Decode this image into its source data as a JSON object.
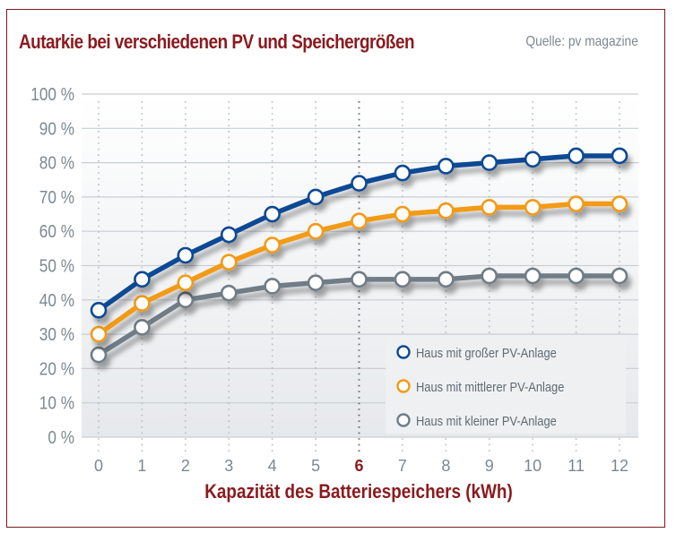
{
  "header": {
    "title": "Autarkie bei verschiedenen PV und Speichergrößen",
    "source": "Quelle: pv magazine"
  },
  "colors": {
    "accent": "#8b1a1e",
    "blue": "#0a4a94",
    "orange": "#f39a13",
    "gray": "#6f7c86",
    "axis_text": "#7c8891"
  },
  "chart_data": {
    "type": "line",
    "title": "Autarkie bei verschiedenen PV und Speichergrößen",
    "xlabel": "Kapazität des Batteriespeichers (kWh)",
    "ylabel": "",
    "x": [
      0,
      1,
      2,
      3,
      4,
      5,
      6,
      7,
      8,
      9,
      10,
      11,
      12
    ],
    "x_tick_labels": [
      "0",
      "1",
      "2",
      "3",
      "4",
      "5",
      "6",
      "7",
      "8",
      "9",
      "10",
      "11",
      "12"
    ],
    "highlighted_x": 6,
    "ylim": [
      0,
      100
    ],
    "y_ticks": [
      0,
      10,
      20,
      30,
      40,
      50,
      60,
      70,
      80,
      90,
      100
    ],
    "y_tick_labels": [
      "0 %",
      "10 %",
      "20 %",
      "30 %",
      "40 %",
      "50 %",
      "60 %",
      "70 %",
      "80 %",
      "90 %",
      "100 %"
    ],
    "grid": true,
    "legend_position": "bottom-right",
    "series": [
      {
        "name": "Haus mit großer PV-Anlage",
        "color": "#0a4a94",
        "values": [
          37,
          46,
          53,
          59,
          65,
          70,
          74,
          77,
          79,
          80,
          81,
          82,
          82
        ]
      },
      {
        "name": "Haus mit mittlerer PV-Anlage",
        "color": "#f39a13",
        "values": [
          30,
          39,
          45,
          51,
          56,
          60,
          63,
          65,
          66,
          67,
          67,
          68,
          68
        ]
      },
      {
        "name": "Haus mit kleiner PV-Anlage",
        "color": "#6f7c86",
        "values": [
          24,
          32,
          40,
          42,
          44,
          45,
          46,
          46,
          46,
          47,
          47,
          47,
          47
        ]
      }
    ]
  }
}
